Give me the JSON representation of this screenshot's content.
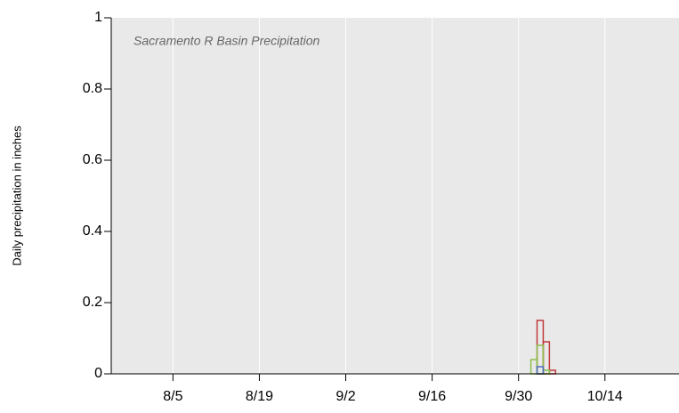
{
  "chart_data": {
    "type": "step",
    "title": "Sacramento R Basin Precipitation",
    "y_label": "Daily precipitation in inches",
    "x": [
      "10/1",
      "10/2",
      "10/3",
      "10/4",
      "10/5",
      "10/6"
    ],
    "series": [
      {
        "name": "red",
        "color": "#c0393b",
        "values": [
          0,
          0,
          0.15,
          0.09,
          0.01,
          0
        ]
      },
      {
        "name": "green",
        "color": "#8cbf4a",
        "values": [
          0,
          0.04,
          0.08,
          0.01,
          0,
          0
        ]
      },
      {
        "name": "blue",
        "color": "#4a6fc0",
        "values": [
          0,
          0,
          0.02,
          0,
          0,
          0
        ]
      }
    ],
    "xlim": [
      "7/26",
      "10/26"
    ],
    "xticks": [
      "8/5",
      "8/19",
      "9/2",
      "9/16",
      "9/30",
      "10/14"
    ],
    "ylim": [
      0,
      1
    ],
    "yticks": [
      0,
      0.2,
      0.4,
      0.6,
      0.8,
      1
    ],
    "grid": true
  }
}
